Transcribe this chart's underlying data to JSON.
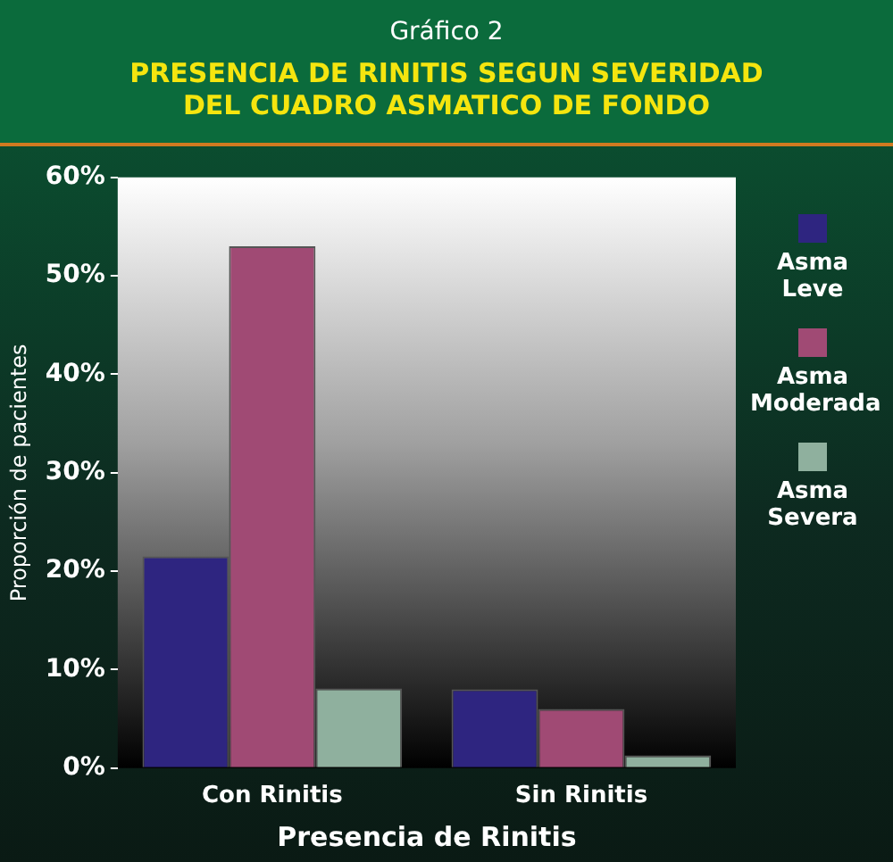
{
  "chart_data": {
    "type": "bar",
    "title": "Gráfico 2",
    "subtitle": "PRESENCIA DE RINITIS SEGUN SEVERIDAD DEL CUADRO ASMATICO DE FONDO",
    "xlabel": "Presencia de Rinitis",
    "ylabel": "Proporción de pacientes",
    "categories": [
      "Con Rinitis",
      "Sin Rinitis"
    ],
    "series": [
      {
        "name": "Asma Leve",
        "color": "#2e2580",
        "values": [
          21.5,
          8
        ]
      },
      {
        "name": "Asma Moderada",
        "color": "#a04a74",
        "values": [
          53,
          6
        ]
      },
      {
        "name": "Asma Severa",
        "color": "#8fb09e",
        "values": [
          8.1,
          1.3
        ]
      }
    ],
    "ylim": [
      0,
      60
    ],
    "yticks": [
      {
        "value": 0,
        "label": "0%"
      },
      {
        "value": 10,
        "label": "10%"
      },
      {
        "value": 20,
        "label": "20%"
      },
      {
        "value": 30,
        "label": "30%"
      },
      {
        "value": 40,
        "label": "40%"
      },
      {
        "value": 50,
        "label": "50%"
      },
      {
        "value": 60,
        "label": "60%"
      }
    ],
    "legend": "right"
  }
}
